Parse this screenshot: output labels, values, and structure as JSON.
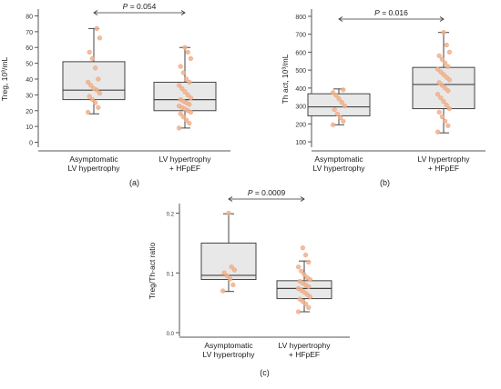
{
  "panels": [
    {
      "panel_label": "(a)",
      "ylabel": "Treg, 10³/mL",
      "pvalue": "P = 0.054",
      "chart_data": {
        "type": "box",
        "categories": [
          "Asymptomatic\nLV hypertrophy",
          "LV hypertrophy\n+ HFpEF"
        ],
        "ylim": [
          -2,
          82
        ],
        "yticks": [
          0,
          10,
          20,
          30,
          40,
          50,
          60,
          70,
          80
        ],
        "tick_labels": [
          "0",
          "10",
          "20",
          "30",
          "40",
          "50",
          "60",
          "70",
          "80"
        ],
        "boxes": [
          {
            "whisker_low": 18,
            "q1": 27,
            "median": 33,
            "q3": 51,
            "whisker_high": 72
          },
          {
            "whisker_low": 9,
            "q1": 20,
            "median": 27,
            "q3": 38,
            "whisker_high": 60
          }
        ],
        "points": [
          [
            19,
            22,
            25,
            27,
            29,
            31,
            33,
            34,
            36,
            38,
            40,
            47,
            53,
            57,
            66,
            72
          ],
          [
            9,
            12,
            14,
            16,
            18,
            19,
            20,
            21,
            22,
            23,
            24,
            25,
            26,
            27,
            28,
            30,
            32,
            34,
            36,
            38,
            40,
            44,
            48,
            53,
            57,
            60
          ]
        ]
      }
    },
    {
      "panel_label": "(b)",
      "ylabel": "Th act, 10³/mL",
      "pvalue": "P = 0.016",
      "chart_data": {
        "type": "box",
        "categories": [
          "Asymptomatic\nLV hypertrophy",
          "LV hypertrophy\n+ HFpEF"
        ],
        "ylim": [
          80,
          820
        ],
        "yticks": [
          100,
          200,
          300,
          400,
          500,
          600,
          700,
          800
        ],
        "tick_labels": [
          "100",
          "200",
          "300",
          "400",
          "500",
          "600",
          "700",
          "800"
        ],
        "boxes": [
          {
            "whisker_low": 195,
            "q1": 245,
            "median": 295,
            "q3": 368,
            "whisker_high": 395
          },
          {
            "whisker_low": 150,
            "q1": 285,
            "median": 420,
            "q3": 515,
            "whisker_high": 710
          }
        ],
        "points": [
          [
            195,
            215,
            235,
            255,
            280,
            300,
            320,
            340,
            360,
            375,
            390
          ],
          [
            155,
            190,
            215,
            240,
            265,
            285,
            305,
            325,
            345,
            365,
            385,
            400,
            415,
            430,
            445,
            460,
            475,
            490,
            505,
            520,
            540,
            560,
            580,
            600,
            640,
            710
          ]
        ]
      }
    },
    {
      "panel_label": "(c)",
      "ylabel": "Treg/Th-act ratio",
      "pvalue": "P = 0.0009",
      "chart_data": {
        "type": "box",
        "categories": [
          "Asymptomatic\nLV hypertrophy",
          "LV hypertrophy\n+ HFpEF"
        ],
        "ylim": [
          -0.003,
          0.21
        ],
        "yticks": [
          0.0,
          0.1,
          0.2
        ],
        "tick_labels": [
          "0.0",
          "0.1",
          "0.2"
        ],
        "boxes": [
          {
            "whisker_low": 0.069,
            "q1": 0.089,
            "median": 0.096,
            "q3": 0.15,
            "whisker_high": 0.199
          },
          {
            "whisker_low": 0.035,
            "q1": 0.057,
            "median": 0.074,
            "q3": 0.087,
            "whisker_high": 0.12
          }
        ],
        "points": [
          [
            0.07,
            0.08,
            0.09,
            0.095,
            0.1,
            0.105,
            0.11,
            0.2
          ],
          [
            0.035,
            0.042,
            0.048,
            0.052,
            0.056,
            0.06,
            0.064,
            0.068,
            0.071,
            0.074,
            0.077,
            0.08,
            0.083,
            0.086,
            0.089,
            0.092,
            0.097,
            0.103,
            0.11,
            0.118,
            0.13,
            0.142
          ]
        ]
      }
    }
  ],
  "style": {
    "box_fill": "#e8e8e8",
    "box_stroke": "#444444",
    "point_color": "#f2b28c",
    "bracket_color": "#333333"
  }
}
